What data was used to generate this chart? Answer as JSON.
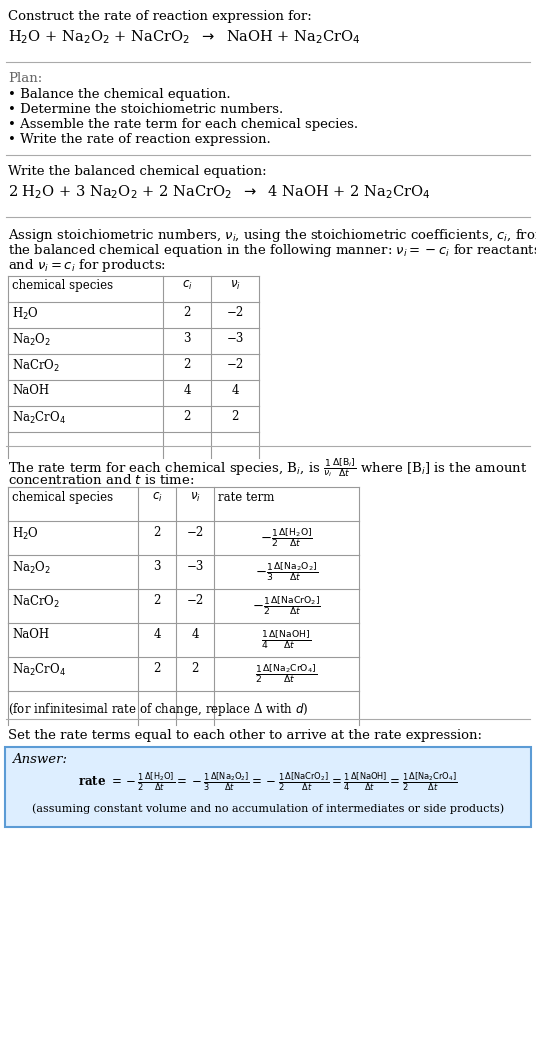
{
  "bg_color": "#ffffff",
  "text_color": "#000000",
  "title_line1": "Construct the rate of reaction expression for:",
  "plan_header": "Plan:",
  "plan_items": [
    "• Balance the chemical equation.",
    "• Determine the stoichiometric numbers.",
    "• Assemble the rate term for each chemical species.",
    "• Write the rate of reaction expression."
  ],
  "balanced_header": "Write the balanced chemical equation:",
  "stoich_intro_lines": [
    "Assign stoichiometric numbers, $\\nu_i$, using the stoichiometric coefficients, $c_i$, from",
    "the balanced chemical equation in the following manner: $\\nu_i = -c_i$ for reactants",
    "and $\\nu_i = c_i$ for products:"
  ],
  "table1_species": [
    "H$_2$O",
    "Na$_2$O$_2$",
    "NaCrO$_2$",
    "NaOH",
    "Na$_2$CrO$_4$"
  ],
  "table1_ci": [
    "2",
    "3",
    "2",
    "4",
    "2"
  ],
  "table1_nu": [
    "−2",
    "−3",
    "−2",
    "4",
    "2"
  ],
  "rate_intro_line1": "The rate term for each chemical species, B$_i$, is $\\frac{1}{\\nu_i}\\frac{\\Delta[\\mathrm{B}_i]}{\\Delta t}$ where [B$_i$] is the amount",
  "rate_intro_line2": "concentration and $t$ is time:",
  "table2_species": [
    "H$_2$O",
    "Na$_2$O$_2$",
    "NaCrO$_2$",
    "NaOH",
    "Na$_2$CrO$_4$"
  ],
  "table2_ci": [
    "2",
    "3",
    "2",
    "4",
    "2"
  ],
  "table2_nu": [
    "−2",
    "−3",
    "−2",
    "4",
    "2"
  ],
  "table2_rate": [
    "$-\\frac{1}{2}\\frac{\\Delta[\\mathrm{H_2O}]}{\\Delta t}$",
    "$-\\frac{1}{3}\\frac{\\Delta[\\mathrm{Na_2O_2}]}{\\Delta t}$",
    "$-\\frac{1}{2}\\frac{\\Delta[\\mathrm{NaCrO_2}]}{\\Delta t}$",
    "$\\frac{1}{4}\\frac{\\Delta[\\mathrm{NaOH}]}{\\Delta t}$",
    "$\\frac{1}{2}\\frac{\\Delta[\\mathrm{Na_2CrO_4}]}{\\Delta t}$"
  ],
  "infinitesimal_note": "(for infinitesimal rate of change, replace Δ with $d$)",
  "set_rate_text": "Set the rate terms equal to each other to arrive at the rate expression:",
  "answer_label": "Answer:",
  "answer_box_color": "#ddeeff",
  "answer_box_border": "#5b9bd5",
  "assuming_note": "(assuming constant volume and no accumulation of intermediates or side products)"
}
